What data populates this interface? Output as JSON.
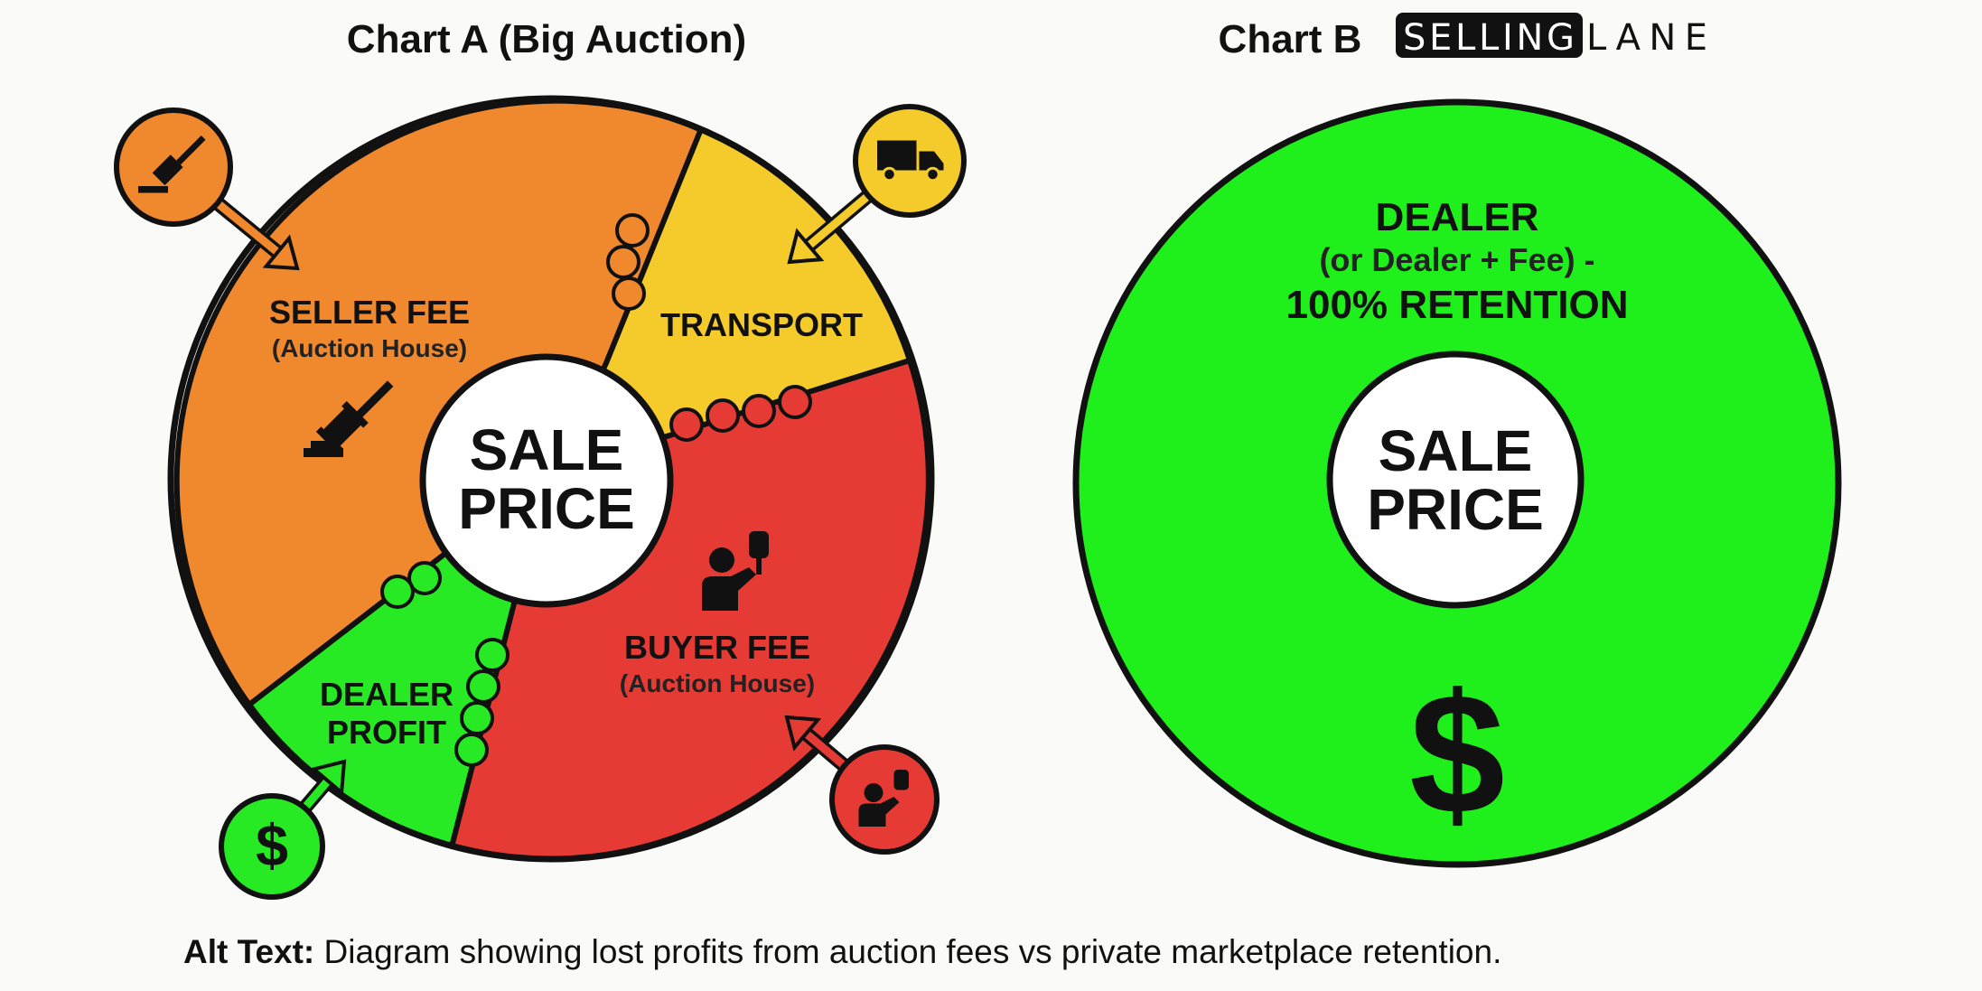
{
  "chart_a": {
    "title": "Chart A (Big Auction)",
    "center_label": [
      "SALE",
      "PRICE"
    ],
    "segments": [
      {
        "name": "seller-fee",
        "label": "SELLER FEE",
        "sublabel": "(Auction House)",
        "color": "#F0882E",
        "icon": "gavel-icon"
      },
      {
        "name": "transport",
        "label": "TRANSPORT",
        "color": "#F5CB2C",
        "icon": "truck-icon"
      },
      {
        "name": "buyer-fee",
        "label": "BUYER FEE",
        "sublabel": "(Auction House)",
        "color": "#E63B35",
        "icon": "bidder-paddle-icon"
      },
      {
        "name": "dealer-profit",
        "label": "DEALER",
        "label2": "PROFIT",
        "color": "#27EA25",
        "icon": "dollar-icon"
      }
    ],
    "dollar_glyph": "$"
  },
  "chart_b": {
    "title": "Chart B",
    "logo": {
      "part1": "SELLING",
      "part2": "LANE"
    },
    "label": "DEALER",
    "sublabel": "(or Dealer + Fee) -",
    "label2": "100% RETENTION",
    "center_label": [
      "SALE",
      "PRICE"
    ],
    "color": "#1FF01C",
    "dollar_glyph": "$"
  },
  "caption": {
    "prefix": "Alt Text:",
    "text": " Diagram showing lost profits from auction fees vs private marketplace retention."
  }
}
